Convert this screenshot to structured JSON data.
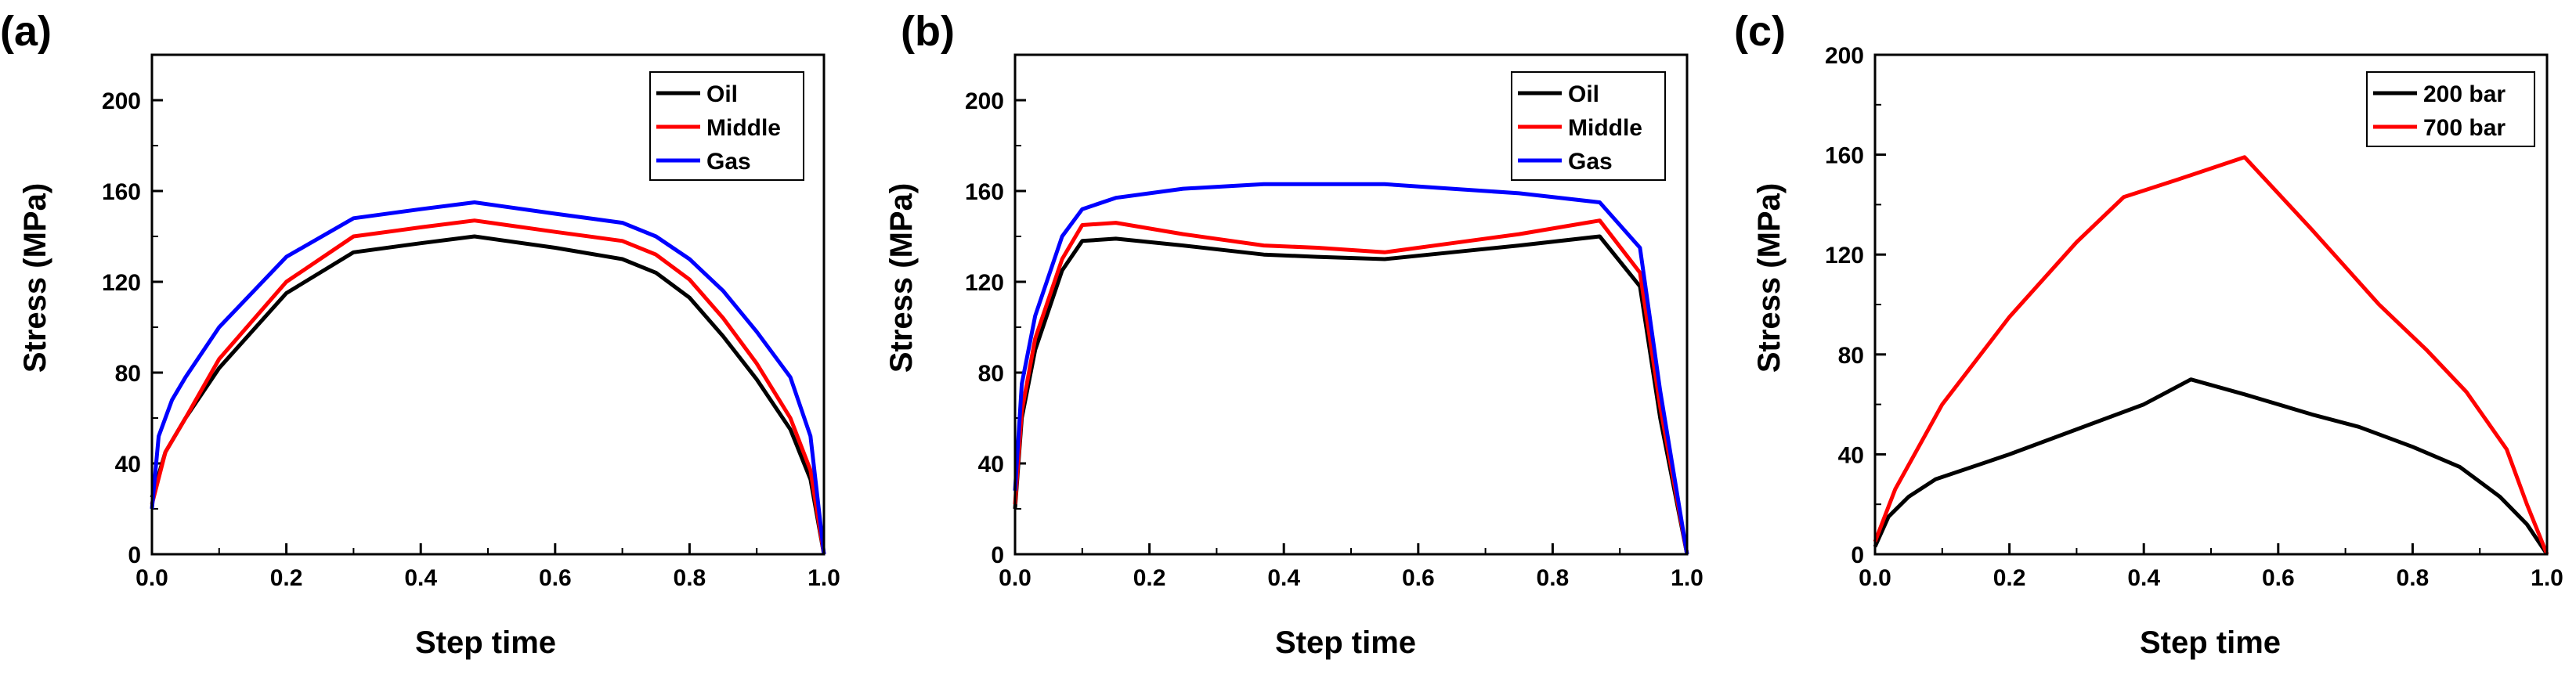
{
  "chart_data": [
    {
      "type": "line",
      "panel_label": "(a)",
      "xlabel": "Step time",
      "ylabel": "Stress (MPa)",
      "xlim": [
        0,
        1
      ],
      "ylim": [
        0,
        220
      ],
      "xticks": [
        0.0,
        0.2,
        0.4,
        0.6,
        0.8,
        1.0
      ],
      "xtick_labels": [
        "0.0",
        "0.2",
        "0.4",
        "0.6",
        "0.8",
        "1.0"
      ],
      "yticks": [
        0,
        40,
        80,
        120,
        160,
        200
      ],
      "ytick_labels": [
        "0",
        "40",
        "80",
        "120",
        "160",
        "200"
      ],
      "legend": "top-right",
      "series": [
        {
          "name": "Oil",
          "color": "#000000",
          "x": [
            0,
            0.02,
            0.05,
            0.1,
            0.2,
            0.3,
            0.4,
            0.48,
            0.6,
            0.7,
            0.75,
            0.8,
            0.85,
            0.9,
            0.95,
            0.98,
            1.0
          ],
          "y": [
            25,
            45,
            60,
            82,
            115,
            133,
            137,
            140,
            135,
            130,
            124,
            113,
            96,
            77,
            55,
            33,
            0
          ]
        },
        {
          "name": "Middle",
          "color": "#ff0000",
          "x": [
            0,
            0.02,
            0.05,
            0.1,
            0.2,
            0.3,
            0.4,
            0.48,
            0.6,
            0.7,
            0.75,
            0.8,
            0.85,
            0.9,
            0.95,
            0.98,
            1.0
          ],
          "y": [
            22,
            45,
            60,
            86,
            120,
            140,
            144,
            147,
            142,
            138,
            132,
            121,
            104,
            84,
            60,
            37,
            0
          ]
        },
        {
          "name": "Gas",
          "color": "#0000ff",
          "x": [
            0,
            0.01,
            0.03,
            0.05,
            0.1,
            0.2,
            0.3,
            0.4,
            0.48,
            0.6,
            0.7,
            0.75,
            0.8,
            0.85,
            0.9,
            0.95,
            0.98,
            1.0
          ],
          "y": [
            20,
            52,
            68,
            78,
            100,
            131,
            148,
            152,
            155,
            150,
            146,
            140,
            130,
            116,
            98,
            78,
            52,
            0
          ]
        }
      ]
    },
    {
      "type": "line",
      "panel_label": "(b)",
      "xlabel": "Step time",
      "ylabel": "Stress (MPa)",
      "xlim": [
        0,
        1
      ],
      "ylim": [
        0,
        220
      ],
      "xticks": [
        0.0,
        0.2,
        0.4,
        0.6,
        0.8,
        1.0
      ],
      "xtick_labels": [
        "0.0",
        "0.2",
        "0.4",
        "0.6",
        "0.8",
        "1.0"
      ],
      "yticks": [
        0,
        40,
        80,
        120,
        160,
        200
      ],
      "ytick_labels": [
        "0",
        "40",
        "80",
        "120",
        "160",
        "200"
      ],
      "legend": "top-right",
      "series": [
        {
          "name": "Oil",
          "color": "#000000",
          "x": [
            0,
            0.01,
            0.03,
            0.07,
            0.1,
            0.15,
            0.25,
            0.37,
            0.45,
            0.55,
            0.65,
            0.75,
            0.87,
            0.93,
            0.96,
            1.0
          ],
          "y": [
            20,
            60,
            90,
            125,
            138,
            139,
            136,
            132,
            131,
            130,
            133,
            136,
            140,
            118,
            60,
            0
          ]
        },
        {
          "name": "Middle",
          "color": "#ff0000",
          "x": [
            0,
            0.01,
            0.03,
            0.07,
            0.1,
            0.15,
            0.25,
            0.37,
            0.45,
            0.55,
            0.65,
            0.75,
            0.87,
            0.93,
            0.96,
            1.0
          ],
          "y": [
            22,
            63,
            95,
            130,
            145,
            146,
            141,
            136,
            135,
            133,
            137,
            141,
            147,
            124,
            65,
            0
          ]
        },
        {
          "name": "Gas",
          "color": "#0000ff",
          "x": [
            0,
            0.01,
            0.03,
            0.07,
            0.1,
            0.15,
            0.25,
            0.37,
            0.45,
            0.55,
            0.65,
            0.75,
            0.87,
            0.93,
            0.96,
            1.0
          ],
          "y": [
            28,
            75,
            105,
            140,
            152,
            157,
            161,
            163,
            163,
            163,
            161,
            159,
            155,
            135,
            72,
            0
          ]
        }
      ]
    },
    {
      "type": "line",
      "panel_label": "(c)",
      "xlabel": "Step time",
      "ylabel": "Stress (MPa)",
      "xlim": [
        0,
        1
      ],
      "ylim": [
        0,
        200
      ],
      "xticks": [
        0.0,
        0.2,
        0.4,
        0.6,
        0.8,
        1.0
      ],
      "xtick_labels": [
        "0.0",
        "0.2",
        "0.4",
        "0.6",
        "0.8",
        "1.0"
      ],
      "yticks": [
        0,
        40,
        80,
        120,
        160,
        200
      ],
      "ytick_labels": [
        "0",
        "40",
        "80",
        "120",
        "160",
        "200"
      ],
      "legend": "top-right",
      "series": [
        {
          "name": "200 bar",
          "color": "#000000",
          "x": [
            0,
            0.02,
            0.05,
            0.09,
            0.2,
            0.3,
            0.4,
            0.47,
            0.55,
            0.65,
            0.72,
            0.8,
            0.87,
            0.93,
            0.97,
            1.0
          ],
          "y": [
            3,
            15,
            23,
            30,
            40,
            50,
            60,
            70,
            64,
            56,
            51,
            43,
            35,
            23,
            12,
            0
          ]
        },
        {
          "name": "700 bar",
          "color": "#ff0000",
          "x": [
            0,
            0.03,
            0.1,
            0.2,
            0.3,
            0.37,
            0.45,
            0.55,
            0.65,
            0.75,
            0.82,
            0.88,
            0.94,
            0.97,
            1.0
          ],
          "y": [
            5,
            26,
            60,
            95,
            125,
            143,
            150,
            159,
            130,
            100,
            82,
            65,
            42,
            20,
            0
          ]
        }
      ]
    }
  ]
}
